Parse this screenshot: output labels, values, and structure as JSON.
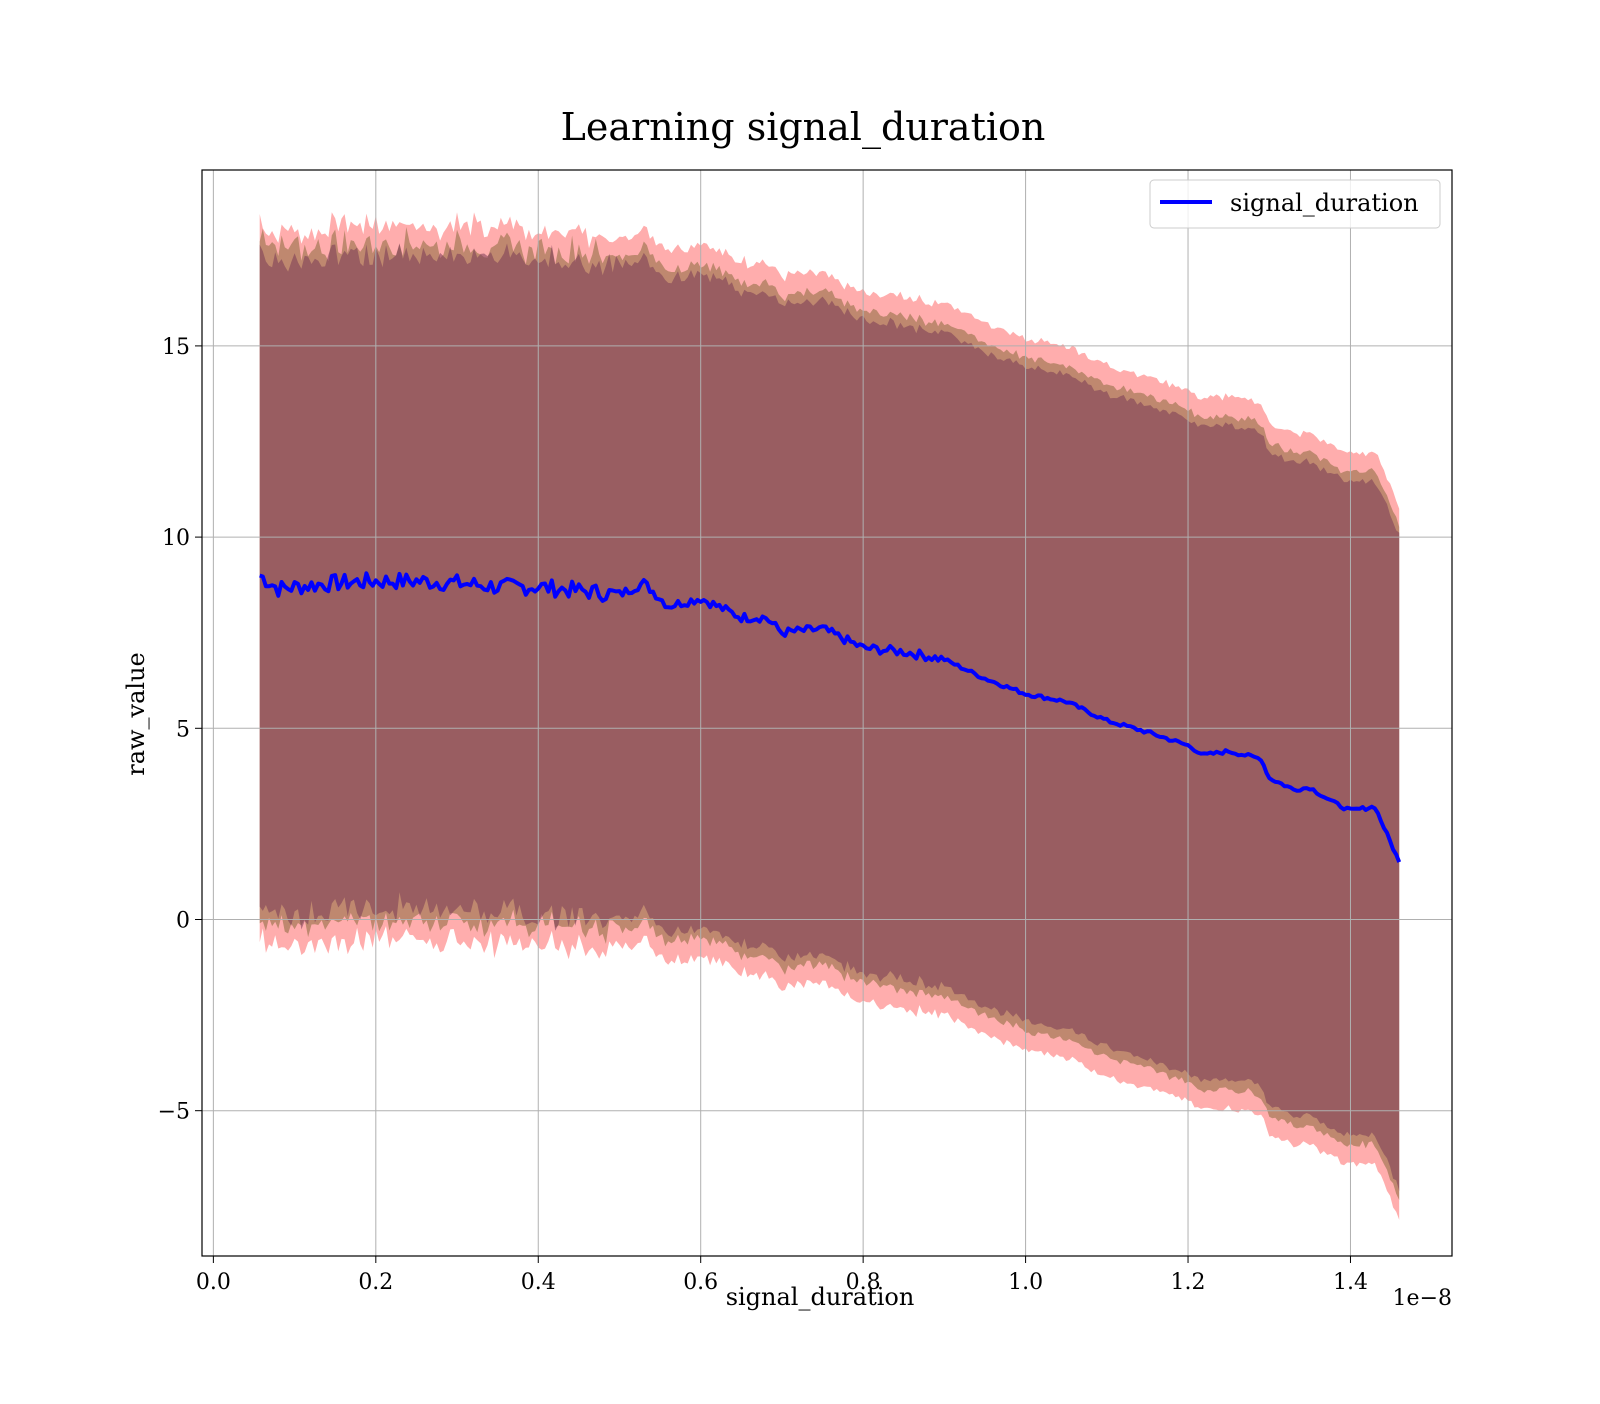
{
  "chart_data": {
    "type": "line",
    "title": "Learning signal_duration",
    "xlabel": "signal_duration",
    "ylabel": "raw_value",
    "x_offset_text": "1e−8",
    "xlim": [
      -0.014,
      1.525
    ],
    "ylim": [
      -8.8,
      19.6
    ],
    "x_ticks": [
      0.0,
      0.2,
      0.4,
      0.6,
      0.8,
      1.0,
      1.2,
      1.4
    ],
    "x_tick_labels": [
      "0.0",
      "0.2",
      "0.4",
      "0.6",
      "0.8",
      "1.0",
      "1.2",
      "1.4"
    ],
    "y_ticks": [
      -5,
      0,
      5,
      10,
      15
    ],
    "y_tick_labels": [
      "−5",
      "0",
      "5",
      "10",
      "15"
    ],
    "grid": true,
    "legend_position": "top-right",
    "series": [
      {
        "name": "signal_duration",
        "color": "#0000ff",
        "x": [
          0.057,
          0.08,
          0.1,
          0.15,
          0.2,
          0.25,
          0.3,
          0.35,
          0.4,
          0.45,
          0.5,
          0.53,
          0.56,
          0.6,
          0.65,
          0.68,
          0.7,
          0.75,
          0.8,
          0.85,
          0.9,
          0.95,
          1.0,
          1.05,
          1.1,
          1.15,
          1.2,
          1.22,
          1.25,
          1.29,
          1.3,
          1.33,
          1.35,
          1.38,
          1.4,
          1.43,
          1.46
        ],
        "values": [
          9.0,
          8.65,
          8.7,
          8.8,
          8.85,
          8.85,
          8.8,
          8.7,
          8.7,
          8.6,
          8.5,
          8.8,
          8.2,
          8.4,
          7.9,
          7.9,
          7.5,
          7.6,
          7.1,
          7.0,
          6.8,
          6.3,
          5.9,
          5.7,
          5.2,
          4.9,
          4.55,
          4.3,
          4.4,
          4.2,
          3.7,
          3.4,
          3.45,
          3.05,
          2.85,
          2.95,
          1.5
        ]
      }
    ],
    "band_color": "#ff0000"
  }
}
